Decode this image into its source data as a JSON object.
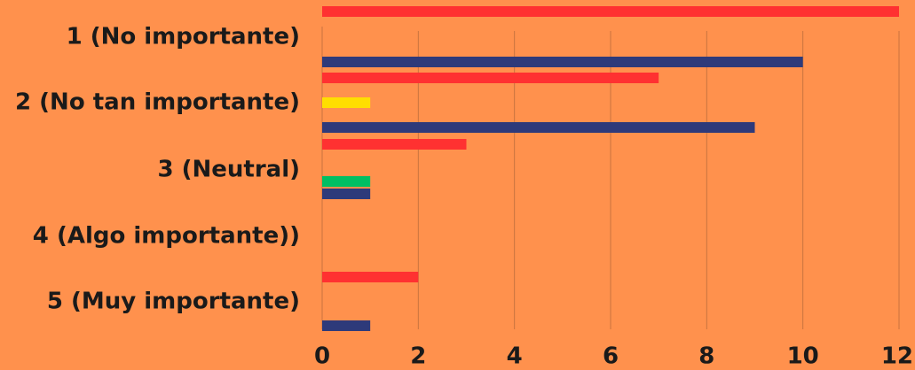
{
  "chart_data": {
    "type": "bar",
    "orientation": "horizontal",
    "categories": [
      "1 (No importante)",
      "2 (No tan importante)",
      "3 (Neutral)",
      "4 (Algo importante))",
      "5 (Muy importante)"
    ],
    "series": [
      {
        "color": "#FF3131",
        "values": [
          12,
          7,
          3,
          0,
          2
        ]
      },
      {
        "color": "#FFDE00",
        "values": [
          0,
          1,
          0,
          0,
          0
        ]
      },
      {
        "color": "#00BF63",
        "values": [
          0,
          0,
          1,
          0,
          0
        ]
      },
      {
        "color": "#2E3A7A",
        "values": [
          10,
          9,
          1,
          0,
          1
        ]
      }
    ],
    "xticks": [
      "0",
      "2",
      "4",
      "6",
      "8",
      "10",
      "12"
    ],
    "xlim": [
      0,
      12
    ],
    "grid": true,
    "legend": "none",
    "colors": {
      "background": "#FF914D",
      "grid": "#C8743F",
      "text": "#1a1a1a"
    }
  }
}
